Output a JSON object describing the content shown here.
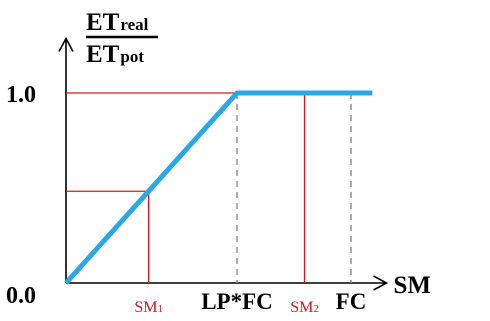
{
  "chart_data": {
    "type": "line",
    "ylabel": {
      "num_main": "ET",
      "num_sub": "real",
      "den_main": "ET",
      "den_sub": "pot"
    },
    "xlabel": "SM",
    "y_ticks": [
      {
        "label": "0.0",
        "value": 0
      },
      {
        "label": "1.0",
        "value": 1
      }
    ],
    "x_ticks": [
      {
        "label": "LP*FC",
        "value": 0.6
      },
      {
        "label": "FC",
        "value": 1.0
      }
    ],
    "markers": [
      {
        "main": "SM",
        "sub": "1",
        "x": 0.29,
        "y": 0.483
      },
      {
        "main": "SM",
        "sub": "2",
        "x": 0.837,
        "y": 1.0
      }
    ],
    "series": [
      {
        "x": [
          0,
          0.6,
          1.075
        ],
        "y": [
          0,
          1,
          1
        ]
      }
    ],
    "xlim": [
      0,
      1.1
    ],
    "ylim": [
      0,
      1.25
    ],
    "colors": {
      "line": "#2aa8e6",
      "marker": "#e0101c",
      "axis": "#000000",
      "grid": "#808080"
    }
  }
}
